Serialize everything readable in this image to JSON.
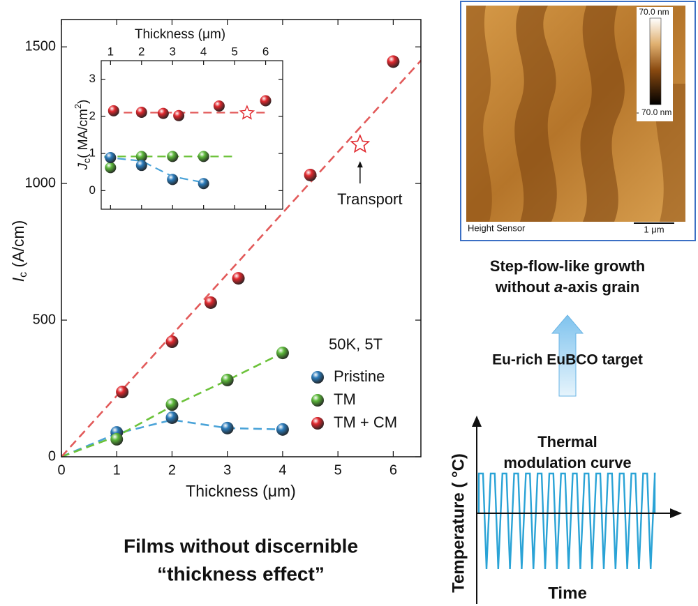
{
  "chart_data": [
    {
      "type": "scatter",
      "xlabel": "Thickness (μm)",
      "ylabel": {
        "symbol": "I",
        "subscript": "c",
        "unit": " (A/cm)"
      },
      "xlim": [
        0,
        6.5
      ],
      "ylim": [
        0,
        1600
      ],
      "xticks": [
        0,
        1,
        2,
        3,
        4,
        5,
        6
      ],
      "yticks": [
        0,
        500,
        1000,
        1500
      ],
      "legend_title": "50K, 5T",
      "legend": "lower right",
      "series": [
        {
          "name": "Pristine",
          "color": "#2b7bba",
          "x": [
            1,
            2,
            3,
            4
          ],
          "values": [
            89,
            143,
            105,
            100
          ]
        },
        {
          "name": "TM",
          "color": "#5cb83a",
          "x": [
            1,
            2,
            3,
            4
          ],
          "values": [
            64,
            191,
            281,
            380
          ]
        },
        {
          "name": "TM + CM",
          "color": "#e0282e",
          "x": [
            1.1,
            2,
            2.7,
            3.2,
            4.5,
            6
          ],
          "values": [
            237,
            421,
            564,
            653,
            1031,
            1446
          ]
        }
      ],
      "fits": [
        {
          "color": "#4aa3d8",
          "x": [
            0,
            1,
            2,
            3,
            4
          ],
          "values": [
            0,
            85,
            135,
            105,
            100
          ]
        },
        {
          "color": "#6cc23a",
          "x": [
            0,
            1,
            2,
            3,
            4
          ],
          "values": [
            0,
            75,
            185,
            280,
            380
          ]
        },
        {
          "color": "#e25a5a",
          "x": [
            0,
            6.5
          ],
          "values": [
            0,
            1450
          ]
        }
      ],
      "annotation": {
        "text": "Transport",
        "x": 5.4,
        "y": 1143,
        "color": "#e0282e"
      }
    },
    {
      "type": "scatter",
      "xlabel": "Thickness (μm)",
      "ylabel": {
        "symbol": "J",
        "subscript": "c",
        "unit": "( MA/cm",
        "superscript": "2",
        "close": ")"
      },
      "xaxis_position": "top",
      "xlim": [
        0.7,
        6.55
      ],
      "ylim": [
        -0.5,
        3.5
      ],
      "xticks": [
        1,
        2,
        3,
        4,
        5,
        6
      ],
      "yticks": [
        0,
        1,
        2,
        3
      ],
      "series": [
        {
          "color": "#e0282e",
          "x": [
            1.1,
            2,
            2.7,
            3.2,
            4.5,
            6
          ],
          "values": [
            2.15,
            2.11,
            2.08,
            2.02,
            2.28,
            2.42
          ]
        },
        {
          "color": "#5cb83a",
          "x": [
            1,
            2,
            3,
            4
          ],
          "values": [
            0.62,
            0.92,
            0.92,
            0.92
          ]
        },
        {
          "color": "#2b7bba",
          "x": [
            1,
            2,
            3,
            4
          ],
          "values": [
            0.89,
            0.68,
            0.3,
            0.19
          ]
        }
      ],
      "fits": [
        {
          "color": "#e25a5a",
          "x": [
            1,
            6
          ],
          "values": [
            2.1,
            2.1
          ]
        },
        {
          "color": "#6cc23a",
          "x": [
            0.8,
            5
          ],
          "values": [
            0.92,
            0.92
          ]
        },
        {
          "color": "#4aa3d8",
          "x": [
            0.8,
            2,
            3,
            4
          ],
          "values": [
            0.9,
            0.8,
            0.38,
            0.22
          ]
        }
      ],
      "star": {
        "x": 5.4,
        "y": 2.09,
        "color": "#e0282e"
      }
    }
  ],
  "caption": {
    "line1": "Films without discernible",
    "line2": "“thickness effect”"
  },
  "afm": {
    "scale_max": "70.0 nm",
    "scale_min": "- 70.0 nm",
    "channel": "Height Sensor",
    "scale_bar": "1 μm"
  },
  "growth": {
    "line1": "Step-flow-like growth",
    "line2_pre": "without ",
    "line2_italic": "a",
    "line2_post": "-axis grain"
  },
  "target": "Eu-rich EuBCO target",
  "thermal": {
    "title1": "Thermal",
    "title2": "modulation curve",
    "ylabel": "Temperature ( °C)",
    "xlabel": "Time"
  }
}
